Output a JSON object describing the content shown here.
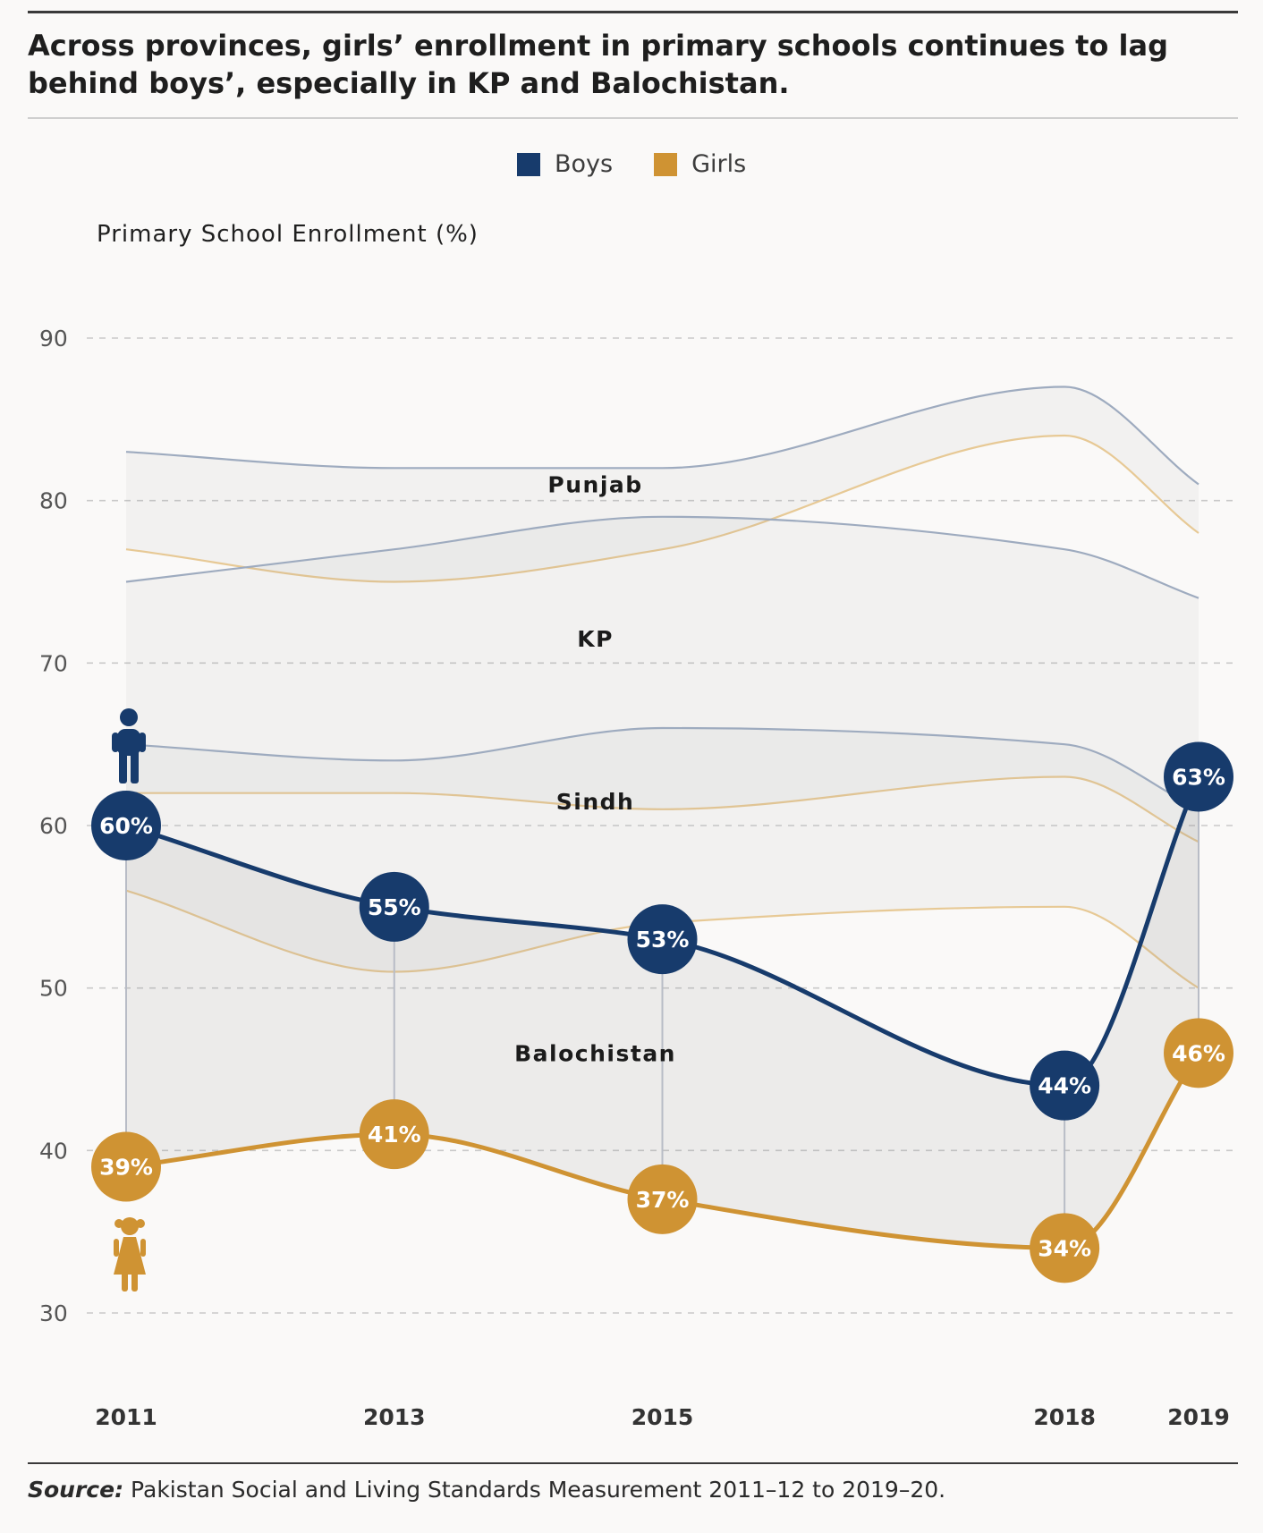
{
  "header": {
    "title": "Across provinces, girls’ enrollment in primary schools continues to lag behind boys’, especially in KP and Balochistan."
  },
  "legend": [
    {
      "label": "Boys",
      "color": "#173b6c"
    },
    {
      "label": "Girls",
      "color": "#cf9333"
    }
  ],
  "footer": {
    "source_label": "Source:",
    "source_text": "Pakistan Social and Living Standards Measurement 2011–12 to 2019–20."
  },
  "icons": {
    "boys_marker": "boy-figure-icon",
    "girls_marker": "girl-figure-icon"
  },
  "colors": {
    "boys": "#173b6c",
    "girls": "#cf9333",
    "boys_band_line": "#9eabbf",
    "girls_band_line": "#e7c995",
    "band_fill": "#888888"
  },
  "chart_data": {
    "type": "line",
    "ylabel": "Primary School Enrollment (%)",
    "xlabel": "",
    "x": [
      2011,
      2013,
      2015,
      2018,
      2019
    ],
    "ylim": [
      30,
      90
    ],
    "yticks": [
      30,
      40,
      50,
      60,
      70,
      80,
      90
    ],
    "grid": true,
    "legend_position": "top-center",
    "highlight_province": "Balochistan",
    "series": [
      {
        "name": "Boys",
        "values": [
          60,
          55,
          53,
          44,
          63
        ],
        "labels": [
          "60%",
          "55%",
          "53%",
          "44%",
          "63%"
        ]
      },
      {
        "name": "Girls",
        "values": [
          39,
          41,
          37,
          34,
          46
        ],
        "labels": [
          "39%",
          "41%",
          "37%",
          "34%",
          "46%"
        ]
      }
    ],
    "provinces": [
      {
        "name": "Punjab",
        "boys": [
          83,
          82,
          82,
          87,
          81
        ],
        "girls": [
          77,
          75,
          77,
          84,
          78
        ]
      },
      {
        "name": "KP",
        "boys": [
          75,
          77,
          79,
          77,
          74
        ],
        "girls": [
          62,
          62,
          61,
          63,
          59
        ]
      },
      {
        "name": "Sindh",
        "boys": [
          65,
          64,
          66,
          65,
          61
        ],
        "girls": [
          56,
          51,
          54,
          55,
          50
        ]
      }
    ]
  }
}
